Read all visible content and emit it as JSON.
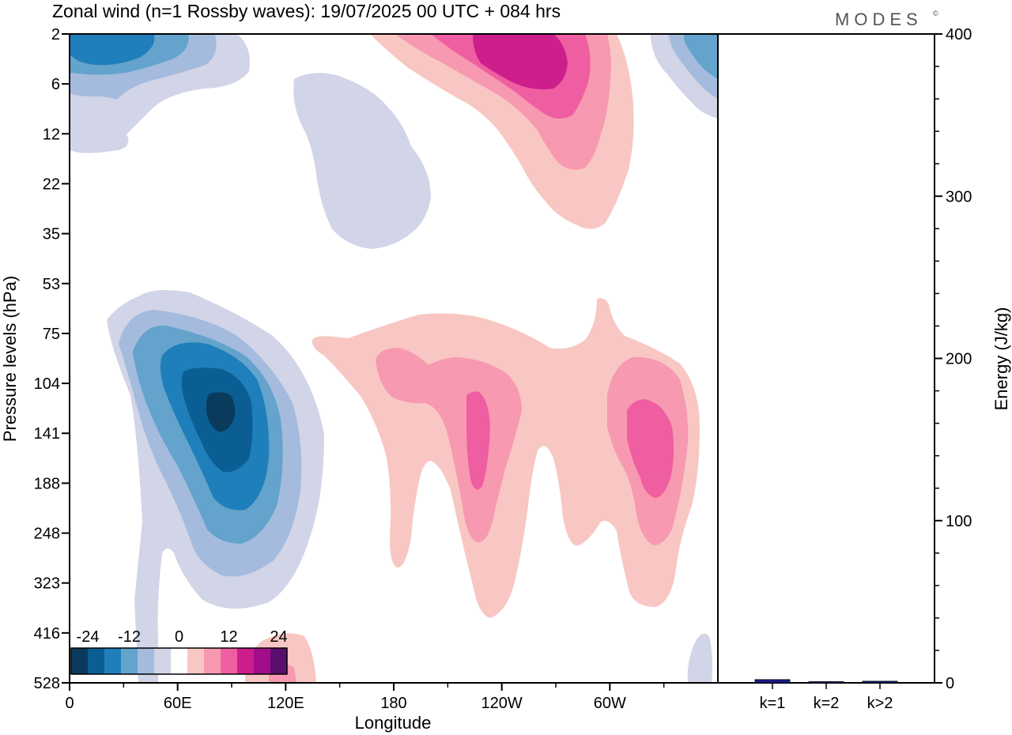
{
  "title": "Zonal wind (n=1 Rossby waves):  19/07/2025  00 UTC  + 084 hrs",
  "brand": "MODES",
  "brand_mark": "©",
  "chart_data": [
    {
      "type": "contour",
      "title": "Zonal wind (n=1 Rossby waves)",
      "xlabel": "Longitude",
      "ylabel": "Pressure levels (hPa)",
      "x_ticks": [
        "0",
        "60E",
        "120E",
        "180",
        "120W",
        "60W"
      ],
      "x_tick_degrees": [
        0,
        60,
        120,
        180,
        240,
        300
      ],
      "xlim": [
        0,
        360
      ],
      "y_ticks": [
        "2",
        "6",
        "12",
        "22",
        "35",
        "53",
        "75",
        "104",
        "141",
        "188",
        "248",
        "323",
        "416",
        "528"
      ],
      "colorbar": {
        "tick_labels": [
          "-24",
          "-12",
          "0",
          "12",
          "24"
        ],
        "colors": [
          "#0a3a5c",
          "#0b5e94",
          "#1f7fba",
          "#63a3cc",
          "#a4bbdd",
          "#d2d4e7",
          "#ffffff",
          "#f8c7c3",
          "#f799b1",
          "#ef5ea0",
          "#cc1f8c",
          "#a10d8a",
          "#5b0e6b"
        ]
      },
      "features": [
        {
          "sign": "negative",
          "longitude": 85,
          "pressure_hPa": 120,
          "min_value": -26
        },
        {
          "sign": "negative",
          "longitude": 15,
          "pressure_hPa": 3,
          "min_value": -16
        },
        {
          "sign": "negative",
          "longitude": 355,
          "pressure_hPa": 3,
          "min_value": -12
        },
        {
          "sign": "positive",
          "longitude": 235,
          "pressure_hPa": 4,
          "max_value": 22
        },
        {
          "sign": "positive",
          "longitude": 225,
          "pressure_hPa": 150,
          "max_value": 14
        },
        {
          "sign": "positive",
          "longitude": 320,
          "pressure_hPa": 160,
          "max_value": 14
        }
      ]
    },
    {
      "type": "bar",
      "ylabel": "Energy (J/kg)",
      "categories": [
        "k=1",
        "k=2",
        "k>2"
      ],
      "values": [
        2,
        0.5,
        1
      ],
      "ylim": [
        0,
        400
      ],
      "y_ticks": [
        0,
        100,
        200,
        300,
        400
      ],
      "bar_color": "#1a1a8c"
    }
  ]
}
